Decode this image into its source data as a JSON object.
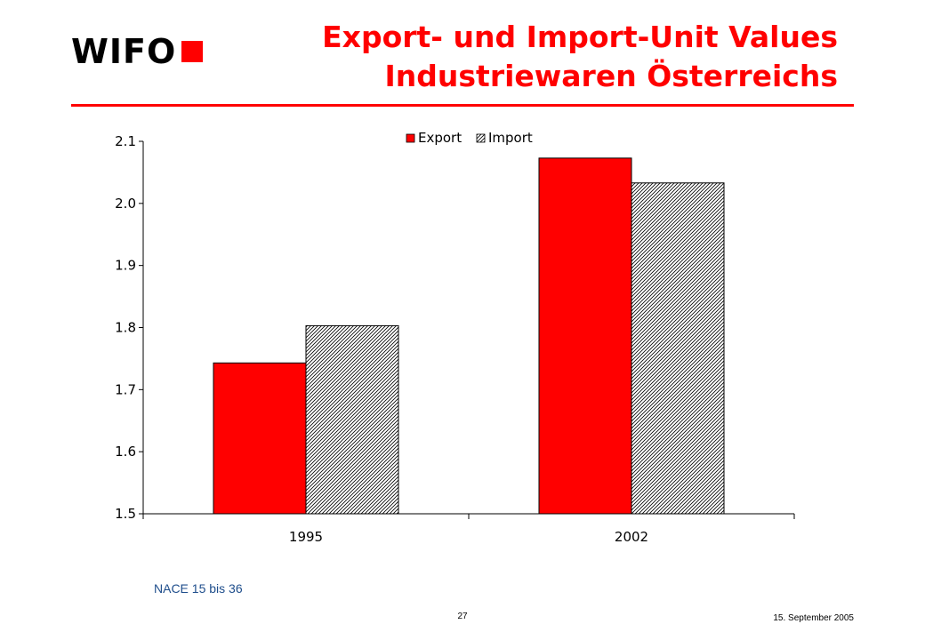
{
  "logo": {
    "text": "WIFO",
    "accent_color": "#ff0000"
  },
  "title": {
    "line1": "Export- und Import-Unit Values",
    "line2": "Industriewaren Österreichs"
  },
  "chart_data": {
    "type": "bar",
    "categories": [
      "1995",
      "2002"
    ],
    "series": [
      {
        "name": "Export",
        "values": [
          1.743,
          2.073
        ],
        "color": "#ff0000",
        "pattern": "solid"
      },
      {
        "name": "Import",
        "values": [
          1.803,
          2.033
        ],
        "color": "#000000",
        "pattern": "diagonal-hatch"
      }
    ],
    "ylim": [
      1.5,
      2.1
    ],
    "yticks": [
      "1.5",
      "1.6",
      "1.7",
      "1.8",
      "1.9",
      "2.0",
      "2.1"
    ],
    "legend_position": "top-center",
    "grid": false
  },
  "footer": {
    "note": "NACE 15 bis 36",
    "page_number": "27",
    "date": "15. September 2005"
  }
}
